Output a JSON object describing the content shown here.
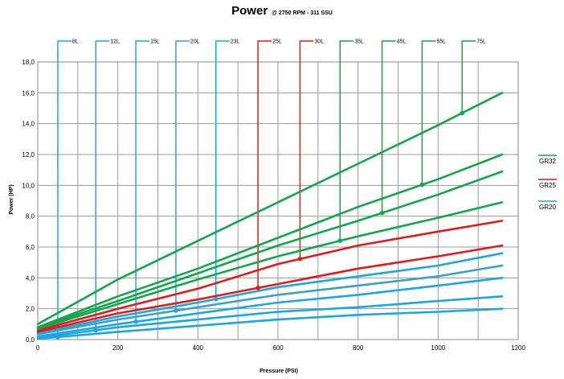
{
  "chart_data": {
    "type": "line",
    "title": "Power",
    "subtitle": "@ 2750 RPM - 311 SSU",
    "xlabel": "Pressure (PSI)",
    "ylabel": "Power (HP)",
    "xlim": [
      0,
      1200
    ],
    "ylim": [
      0,
      18
    ],
    "x_ticks": [
      "0",
      "200",
      "400",
      "600",
      "800",
      "1000",
      "1200"
    ],
    "y_ticks": [
      "0,0",
      "2,0",
      "4,0",
      "6,0",
      "8,0",
      "10,0",
      "12,0",
      "14,0",
      "16,0",
      "18,0"
    ],
    "grid": true,
    "legend_position": "right",
    "colors": {
      "GR20": "#1aa7e0",
      "GR25": "#e01b1b",
      "GR32": "#12a64a",
      "GR20_mid": "#3aa0c8"
    },
    "legend": [
      {
        "label": "GR32",
        "color": "#12a64a"
      },
      {
        "label": "GR25",
        "color": "#e01b1b"
      },
      {
        "label": "GR20",
        "color": "#1aa7e0"
      }
    ],
    "series": [
      {
        "name": "8L",
        "group": "GR20",
        "color": "#1aa7e0",
        "annot_x": 50,
        "x": [
          0,
          200,
          400,
          600,
          800,
          1000,
          1160
        ],
        "y": [
          0.05,
          0.5,
          0.9,
          1.3,
          1.6,
          1.8,
          2.0
        ]
      },
      {
        "name": "12L",
        "group": "GR20",
        "color": "#1aa7e0",
        "annot_x": 145,
        "x": [
          0,
          200,
          400,
          600,
          800,
          1000,
          1160
        ],
        "y": [
          0.1,
          0.8,
          1.3,
          1.8,
          2.1,
          2.5,
          2.8
        ]
      },
      {
        "name": "15L",
        "group": "GR20",
        "color": "#1aa7e0",
        "annot_x": 245,
        "x": [
          0,
          200,
          400,
          600,
          800,
          1000,
          1160
        ],
        "y": [
          0.2,
          1.0,
          1.7,
          2.4,
          2.9,
          3.5,
          4.0
        ]
      },
      {
        "name": "20L",
        "group": "GR20",
        "color": "#3aa0c8",
        "annot_x": 345,
        "x": [
          0,
          200,
          400,
          600,
          800,
          1000,
          1160
        ],
        "y": [
          0.35,
          1.3,
          2.1,
          2.9,
          3.5,
          4.1,
          4.8
        ]
      },
      {
        "name": "23L",
        "group": "GR20",
        "color": "#1aa7e0",
        "annot_x": 445,
        "x": [
          0,
          200,
          400,
          600,
          800,
          1000,
          1160
        ],
        "y": [
          0.4,
          1.5,
          2.4,
          3.4,
          4.1,
          4.8,
          5.6
        ]
      },
      {
        "name": "25L",
        "group": "GR25",
        "color": "#e01b1b",
        "annot_x": 550,
        "x": [
          0,
          200,
          400,
          600,
          800,
          1000,
          1160
        ],
        "y": [
          0.5,
          1.7,
          2.6,
          3.6,
          4.6,
          5.4,
          6.1
        ]
      },
      {
        "name": "30L",
        "group": "GR25",
        "color": "#e01b1b",
        "annot_x": 655,
        "x": [
          0,
          200,
          400,
          600,
          800,
          1000,
          1160
        ],
        "y": [
          0.6,
          2.0,
          3.3,
          4.9,
          6.1,
          7.0,
          7.7
        ]
      },
      {
        "name": "35L",
        "group": "GR32",
        "color": "#12a64a",
        "annot_x": 755,
        "x": [
          0,
          200,
          400,
          600,
          800,
          1000,
          1160
        ],
        "y": [
          0.7,
          2.3,
          3.9,
          5.4,
          6.7,
          7.9,
          8.9
        ]
      },
      {
        "name": "45L",
        "group": "GR32",
        "color": "#12a64a",
        "annot_x": 860,
        "x": [
          0,
          200,
          400,
          600,
          800,
          1000,
          1160
        ],
        "y": [
          0.8,
          2.5,
          4.3,
          6.1,
          7.7,
          9.4,
          10.9
        ]
      },
      {
        "name": "55L",
        "group": "GR32",
        "color": "#12a64a",
        "annot_x": 960,
        "x": [
          0,
          200,
          400,
          600,
          800,
          1000,
          1160
        ],
        "y": [
          0.8,
          2.8,
          4.6,
          6.6,
          8.6,
          10.4,
          12.0
        ]
      },
      {
        "name": "75L",
        "group": "GR32",
        "color": "#12a64a",
        "annot_x": 1060,
        "x": [
          0,
          200,
          400,
          600,
          800,
          1000,
          1160
        ],
        "y": [
          1.0,
          3.9,
          6.4,
          8.9,
          11.4,
          13.9,
          16.0
        ]
      }
    ]
  }
}
